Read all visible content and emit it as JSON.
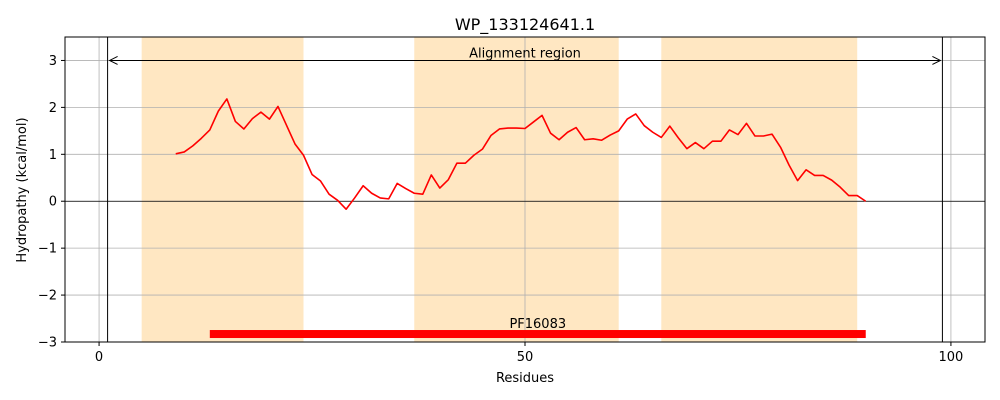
{
  "chart_data": {
    "type": "line",
    "title": "WP_133124641.1",
    "xlabel": "Residues",
    "ylabel": "Hydropathy (kcal/mol)",
    "xlim": [
      -4,
      104
    ],
    "ylim": [
      -3,
      3.5
    ],
    "xticks": [
      0,
      50,
      100
    ],
    "yticks": [
      -3,
      -2,
      -1,
      0,
      1,
      2,
      3
    ],
    "grid": true,
    "colors": {
      "line": "#ff0000",
      "band": "#ffe7c2",
      "domain": "#ff0000",
      "grid": "#b0b0b0",
      "axis": "#000000"
    },
    "highlight_regions": [
      [
        5,
        24
      ],
      [
        37,
        61
      ],
      [
        66,
        89
      ]
    ],
    "alignment_region": {
      "label": "Alignment region",
      "start": 1,
      "end": 99,
      "y": 3.0
    },
    "domain": {
      "label": "PF16083",
      "start": 13,
      "end": 90,
      "y": -2.83
    },
    "series": [
      {
        "x": [
          9,
          10,
          11,
          12,
          13,
          14,
          15,
          16,
          17,
          18,
          19,
          20,
          21,
          22,
          23,
          24,
          25,
          26,
          27,
          28,
          29,
          30,
          31,
          32,
          33,
          34,
          35,
          36,
          37,
          38,
          39,
          40,
          41,
          42,
          43,
          44,
          45,
          46,
          47,
          48,
          49,
          50,
          51,
          52,
          53,
          54,
          55,
          56,
          57,
          58,
          59,
          60,
          61,
          62,
          63,
          64,
          65,
          66,
          67,
          68,
          69,
          70,
          71,
          72,
          73,
          74,
          75,
          76,
          77,
          78,
          79,
          80,
          81,
          82,
          83,
          84,
          85,
          86,
          87,
          88,
          89,
          90
        ],
        "y": [
          1.01,
          1.05,
          1.18,
          1.34,
          1.52,
          1.92,
          2.18,
          1.7,
          1.54,
          1.76,
          1.9,
          1.75,
          2.02,
          1.62,
          1.22,
          0.98,
          0.57,
          0.43,
          0.15,
          0.02,
          -0.17,
          0.07,
          0.33,
          0.17,
          0.07,
          0.05,
          0.38,
          0.27,
          0.17,
          0.15,
          0.56,
          0.28,
          0.46,
          0.81,
          0.81,
          0.98,
          1.11,
          1.4,
          1.54,
          1.56,
          1.56,
          1.55,
          1.69,
          1.83,
          1.45,
          1.31,
          1.47,
          1.57,
          1.31,
          1.33,
          1.3,
          1.41,
          1.5,
          1.75,
          1.86,
          1.61,
          1.47,
          1.36,
          1.6,
          1.35,
          1.12,
          1.25,
          1.12,
          1.28,
          1.28,
          1.52,
          1.42,
          1.66,
          1.39,
          1.39,
          1.43,
          1.15,
          0.77,
          0.44,
          0.67,
          0.55,
          0.55,
          0.45,
          0.3,
          0.12,
          0.12,
          0.0
        ]
      }
    ]
  }
}
